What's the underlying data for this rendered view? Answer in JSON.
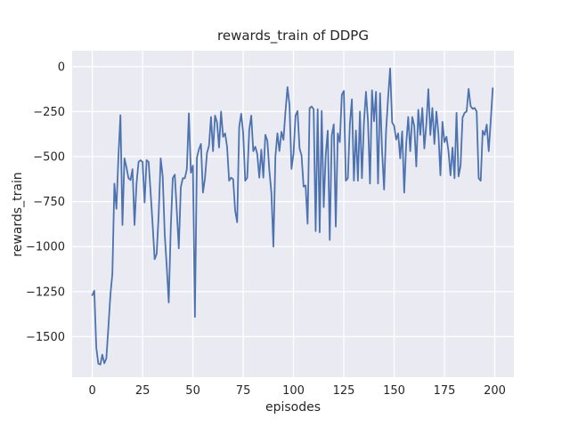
{
  "figure": {
    "background": "#ffffff"
  },
  "chart_data": {
    "type": "line",
    "title": "rewards_train of DDPG",
    "xlabel": "episodes",
    "ylabel": "rewards_train",
    "x_ticks": [
      0,
      25,
      50,
      75,
      100,
      125,
      150,
      175,
      200
    ],
    "y_ticks": [
      0,
      -250,
      -500,
      -750,
      -1000,
      -1250,
      -1500
    ],
    "xlim": [
      -10,
      209.5
    ],
    "ylim": [
      -1725,
      88
    ],
    "grid": true,
    "legend": false,
    "style": "seaborn-darkgrid",
    "plot_bg": "#eaeaf2",
    "grid_color": "#ffffff",
    "text_color": "#262626",
    "line_color": "#4c72b0",
    "series": [
      {
        "name": "rewards_train",
        "color": "#4c72b0",
        "x_start": 0,
        "x_step": 1,
        "values": [
          -1270,
          -1245,
          -1560,
          -1650,
          -1655,
          -1600,
          -1648,
          -1620,
          -1450,
          -1270,
          -1150,
          -650,
          -790,
          -500,
          -270,
          -880,
          -510,
          -560,
          -620,
          -630,
          -570,
          -880,
          -650,
          -530,
          -520,
          -530,
          -755,
          -520,
          -530,
          -700,
          -880,
          -1070,
          -1040,
          -820,
          -510,
          -610,
          -930,
          -1110,
          -1310,
          -900,
          -620,
          -600,
          -800,
          -1010,
          -670,
          -620,
          -620,
          -570,
          -260,
          -590,
          -550,
          -1390,
          -505,
          -460,
          -430,
          -700,
          -620,
          -480,
          -440,
          -280,
          -470,
          -272,
          -310,
          -450,
          -250,
          -390,
          -371,
          -447,
          -634,
          -617,
          -625,
          -800,
          -865,
          -336,
          -262,
          -371,
          -634,
          -617,
          -353,
          -272,
          -470,
          -445,
          -487,
          -617,
          -462,
          -617,
          -379,
          -412,
          -578,
          -700,
          -1000,
          -500,
          -371,
          -469,
          -362,
          -407,
          -250,
          -114,
          -214,
          -568,
          -484,
          -272,
          -247,
          -454,
          -494,
          -667,
          -660,
          -873,
          -231,
          -222,
          -237,
          -914,
          -237,
          -921,
          -247,
          -781,
          -491,
          -356,
          -963,
          -383,
          -321,
          -889,
          -371,
          -420,
          -157,
          -135,
          -634,
          -620,
          -321,
          -182,
          -634,
          -355,
          -634,
          -250,
          -620,
          -310,
          -140,
          -304,
          -650,
          -132,
          -304,
          -140,
          -650,
          -148,
          -469,
          -683,
          -355,
          -173,
          -10,
          -310,
          -330,
          -405,
          -371,
          -510,
          -360,
          -700,
          -430,
          -280,
          -470,
          -280,
          -330,
          -555,
          -240,
          -380,
          -230,
          -455,
          -320,
          -125,
          -380,
          -230,
          -430,
          -250,
          -371,
          -604,
          -307,
          -420,
          -390,
          -470,
          -604,
          -450,
          -620,
          -257,
          -610,
          -550,
          -283,
          -257,
          -250,
          -124,
          -220,
          -235,
          -230,
          -250,
          -620,
          -634,
          -356,
          -380,
          -322,
          -470,
          -300,
          -120
        ]
      }
    ]
  }
}
